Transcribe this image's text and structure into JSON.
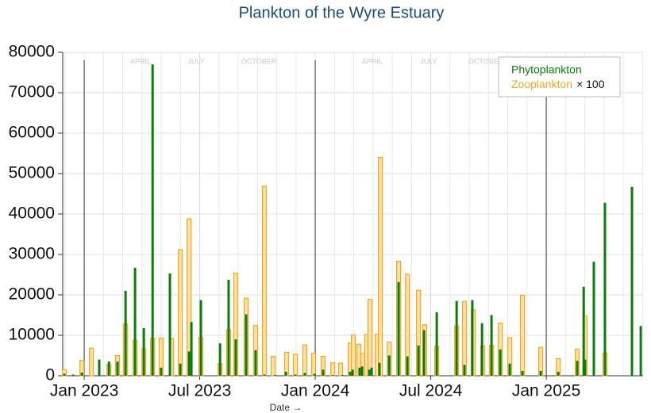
{
  "chart_data": {
    "type": "bar",
    "title": "Plankton of the Wyre Estuary",
    "x_label": "Date →",
    "xlim": [
      2022.907,
      2025.419
    ],
    "ylim": [
      0,
      80000
    ],
    "xticks": [
      {
        "value": 2023,
        "label": "Jan 2023"
      },
      {
        "value": 2023.5,
        "label": "Jul 2023"
      },
      {
        "value": 2024,
        "label": "Jan 2024"
      },
      {
        "value": 2024.5,
        "label": "Jul 2024"
      },
      {
        "value": 2025,
        "label": "Jan 2025"
      }
    ],
    "yticks": [
      0,
      10000,
      20000,
      30000,
      40000,
      50000,
      60000,
      70000,
      80000
    ],
    "grid": true,
    "legend": "top-right",
    "legend_note": "× 100",
    "annotations": [
      {
        "text": "APRIL",
        "x": 2023.244
      },
      {
        "text": "JULY",
        "x": 2023.485
      },
      {
        "text": "OCTOBER",
        "x": 2023.756
      },
      {
        "text": "APRIL",
        "x": 2024.247
      },
      {
        "text": "JULY",
        "x": 2024.491
      },
      {
        "text": "OCTOBER",
        "x": 2024.739
      }
    ],
    "series": [
      {
        "name": "Phytoplankton",
        "color": "#0a7d0a",
        "x": [
          2022.914,
          2022.952,
          2022.99,
          2023.065,
          2023.107,
          2023.144,
          2023.179,
          2023.22,
          2023.258,
          2023.296,
          2023.333,
          2023.371,
          2023.416,
          2023.454,
          2023.464,
          2023.505,
          2023.588,
          2023.625,
          2023.656,
          2023.701,
          2023.742,
          2023.78,
          2023.825,
          2023.873,
          2023.914,
          2023.955,
          2023.997,
          2024.034,
          2024.076,
          2024.117,
          2024.151,
          2024.162,
          2024.192,
          2024.203,
          2024.234,
          2024.244,
          2024.278,
          2024.32,
          2024.361,
          2024.399,
          2024.447,
          2024.471,
          2024.526,
          2024.612,
          2024.646,
          2024.68,
          2024.722,
          2024.763,
          2024.801,
          2024.842,
          2024.897,
          2024.976,
          2025.052,
          2025.134,
          2025.162,
          2025.168,
          2025.206,
          2025.254,
          2025.371,
          2025.409
        ],
        "values": [
          500,
          300,
          800,
          4000,
          3500,
          3500,
          21000,
          26700,
          11800,
          77000,
          2000,
          25300,
          3000,
          6000,
          13300,
          18700,
          8000,
          23700,
          9000,
          15200,
          6300,
          300,
          200,
          1000,
          300,
          700,
          500,
          1500,
          200,
          200,
          1000,
          1500,
          2000,
          2300,
          1500,
          2000,
          3200,
          5000,
          23200,
          4800,
          7500,
          11300,
          15700,
          18500,
          2700,
          18700,
          13000,
          15000,
          6500,
          3000,
          1200,
          1200,
          1000,
          3700,
          22000,
          4000,
          28200,
          42800,
          46700,
          12300
        ]
      },
      {
        "name": "Zooplankton",
        "color": "#f5a623",
        "x": [
          2022.914,
          2022.99,
          2023.031,
          2023.107,
          2023.144,
          2023.179,
          2023.22,
          2023.258,
          2023.296,
          2023.333,
          2023.378,
          2023.416,
          2023.454,
          2023.505,
          2023.588,
          2023.625,
          2023.656,
          2023.701,
          2023.742,
          2023.78,
          2023.818,
          2023.876,
          2023.914,
          2023.955,
          2023.993,
          2024.034,
          2024.076,
          2024.11,
          2024.151,
          2024.165,
          2024.189,
          2024.206,
          2024.223,
          2024.237,
          2024.268,
          2024.282,
          2024.32,
          2024.361,
          2024.399,
          2024.447,
          2024.474,
          2024.526,
          2024.612,
          2024.646,
          2024.684,
          2024.725,
          2024.763,
          2024.801,
          2024.842,
          2024.897,
          2024.976,
          2025.052,
          2025.134,
          2025.168,
          2025.254
        ],
        "values": [
          1500,
          3800,
          6800,
          2800,
          5000,
          12800,
          8800,
          6700,
          9300,
          9300,
          9200,
          31200,
          38800,
          9500,
          3000,
          11400,
          25400,
          19200,
          12400,
          46900,
          4800,
          5800,
          5300,
          7600,
          5500,
          4800,
          3200,
          3100,
          8100,
          10100,
          7800,
          5500,
          10200,
          18900,
          10300,
          54000,
          8300,
          28300,
          25100,
          21100,
          12600,
          7300,
          12300,
          18400,
          16300,
          7400,
          7500,
          13000,
          9400,
          19900,
          7000,
          4200,
          6600,
          14800,
          5600
        ]
      }
    ]
  }
}
